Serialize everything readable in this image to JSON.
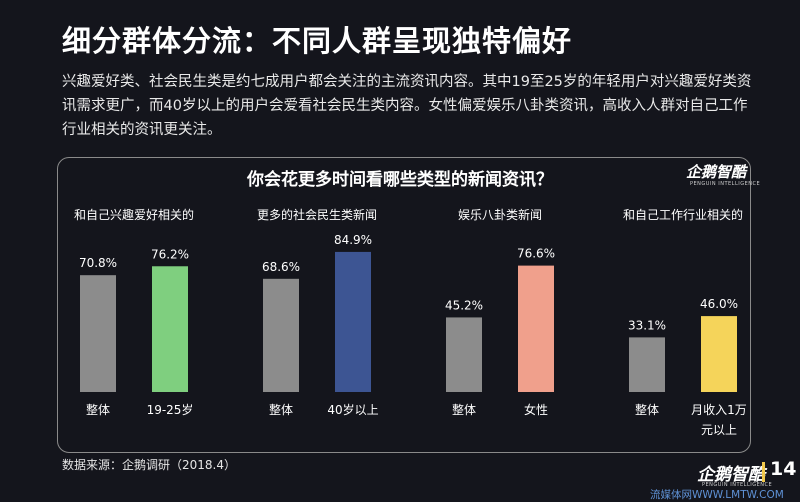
{
  "slide": {
    "title": "细分群体分流：不同人群呈现独特偏好",
    "description": "兴趣爱好类、社会民生类是约七成用户都会关注的主流资讯内容。其中19至25岁的年轻用户对兴趣爱好类资讯需求更广，而40岁以上的用户会爱看社会民生类内容。女性偏爱娱乐八卦类资讯，高收入人群对自己工作行业相关的资讯更关注。",
    "source": "数据来源：企鹅调研（2018.4）",
    "page_number": "14",
    "logo_text": "企鹅智酷",
    "logo_subtext": "PENGUIN INTELLIGENCE",
    "watermark": "流媒体网WWW.LMTW.COM"
  },
  "chart_data": {
    "type": "bar",
    "title": "你会花更多时间看哪些类型的新闻资讯？",
    "unit": "%",
    "colors": {
      "baseline": "#8c8c8c",
      "young": "#7fcf7f",
      "age40": "#3d5593",
      "female": "#f0a08c",
      "income": "#f5d45a"
    },
    "groups": [
      {
        "label": "和自己兴趣爱好相关的",
        "bars": [
          {
            "category": "整体",
            "value": 70.8,
            "value_label": "70.8%",
            "color_key": "baseline"
          },
          {
            "category": "19-25岁",
            "value": 76.2,
            "value_label": "76.2%",
            "color_key": "young"
          }
        ]
      },
      {
        "label": "更多的社会民生类新闻",
        "bars": [
          {
            "category": "整体",
            "value": 68.6,
            "value_label": "68.6%",
            "color_key": "baseline"
          },
          {
            "category": "40岁以上",
            "value": 84.9,
            "value_label": "84.9%",
            "color_key": "age40"
          }
        ]
      },
      {
        "label": "娱乐八卦类新闻",
        "bars": [
          {
            "category": "整体",
            "value": 45.2,
            "value_label": "45.2%",
            "color_key": "baseline"
          },
          {
            "category": "女性",
            "value": 76.6,
            "value_label": "76.6%",
            "color_key": "female"
          }
        ]
      },
      {
        "label": "和自己工作行业相关的",
        "bars": [
          {
            "category": "整体",
            "value": 33.1,
            "value_label": "33.1%",
            "color_key": "baseline"
          },
          {
            "category": "月收入1万\n元以上",
            "value": 46.0,
            "value_label": "46.0%",
            "color_key": "income"
          }
        ]
      }
    ],
    "ylim": [
      0,
      100
    ],
    "grid": false,
    "legend": "none"
  }
}
